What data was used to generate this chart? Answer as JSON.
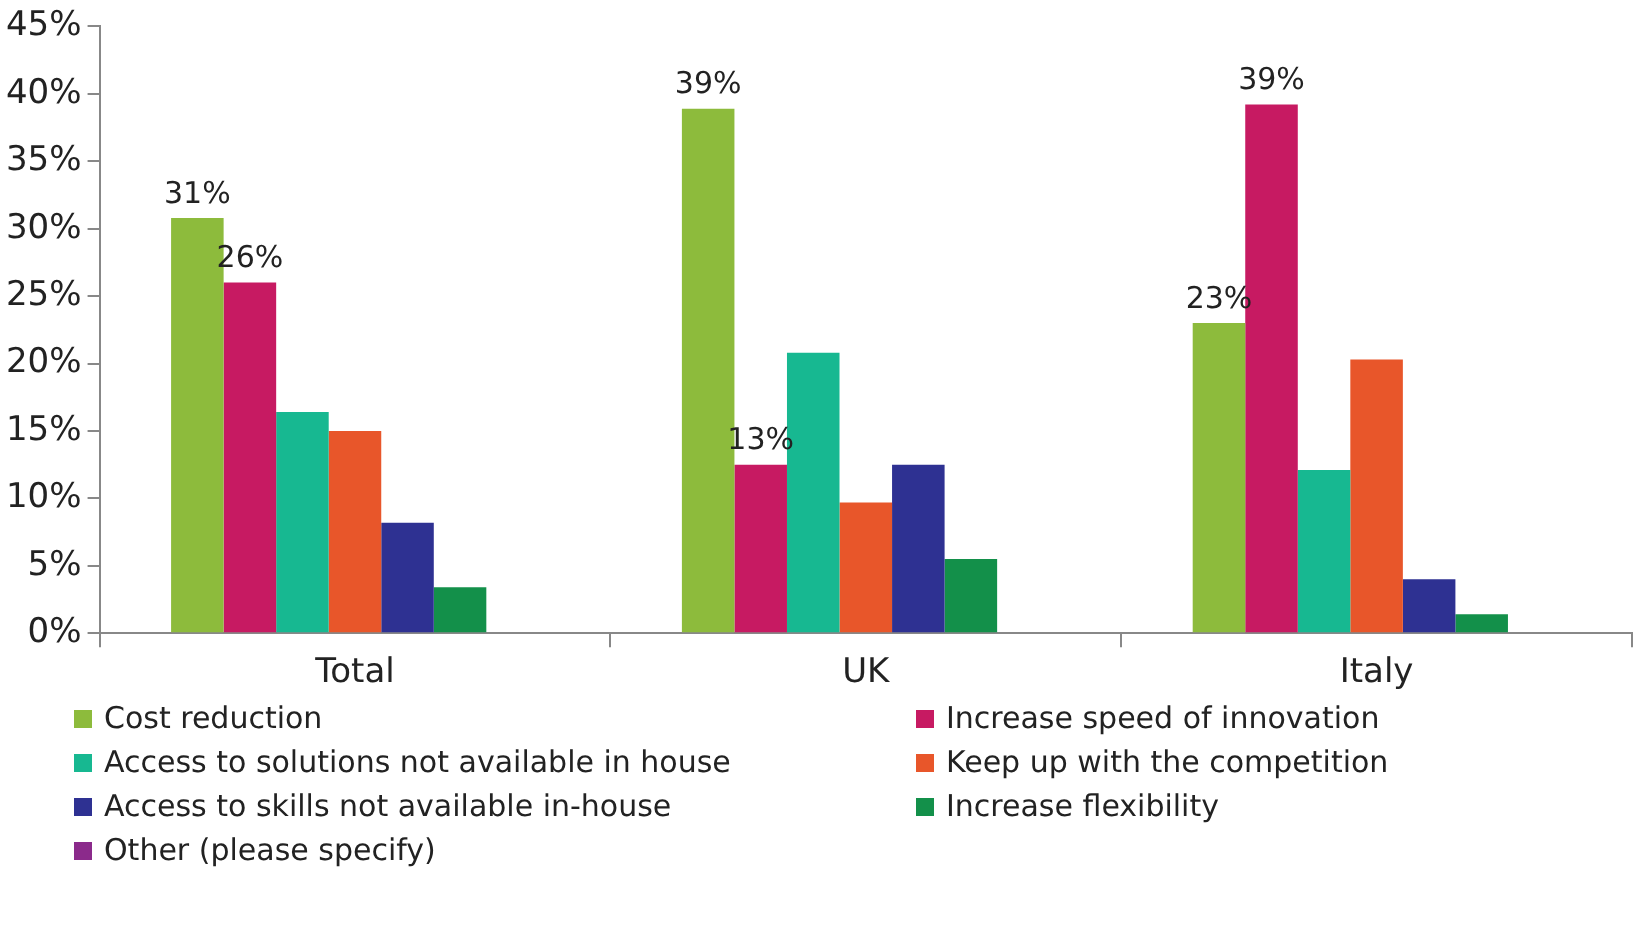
{
  "chart_data": {
    "type": "bar",
    "categories": [
      "Total",
      "UK",
      "Italy"
    ],
    "series": [
      {
        "name": "Cost reduction",
        "color": "#8dbb3c",
        "values": [
          30.8,
          38.9,
          23
        ],
        "value_labels": [
          "31%",
          "39%",
          "23%"
        ]
      },
      {
        "name": "Increase speed of innovation",
        "color": "#c71a62",
        "values": [
          26,
          12.5,
          39.2
        ],
        "value_labels": [
          "26%",
          "13%",
          "39%"
        ]
      },
      {
        "name": "Access to solutions not available in house",
        "color": "#17b891",
        "values": [
          16.4,
          20.8,
          12.1
        ]
      },
      {
        "name": "Keep up with the competition",
        "color": "#e8562a",
        "values": [
          15,
          9.7,
          20.3
        ]
      },
      {
        "name": "Access to skills not available in-house",
        "color": "#2e3192",
        "values": [
          8.2,
          12.5,
          4
        ]
      },
      {
        "name": "Increase flexibility",
        "color": "#13904a",
        "values": [
          3.4,
          5.5,
          1.4
        ]
      },
      {
        "name": "Other (please specify)",
        "color": "#8b2a8b",
        "values": [
          null,
          null,
          null
        ]
      }
    ],
    "ylim": [
      0,
      45
    ],
    "yticks": [
      {
        "value": 0,
        "label": "0%"
      },
      {
        "value": 5,
        "label": "5%"
      },
      {
        "value": 10,
        "label": "10%"
      },
      {
        "value": 15,
        "label": "15%"
      },
      {
        "value": 20,
        "label": "20%"
      },
      {
        "value": 25,
        "label": "25%"
      },
      {
        "value": 30,
        "label": "30%"
      },
      {
        "value": 35,
        "label": "35%"
      },
      {
        "value": 40,
        "label": "40%"
      },
      {
        "value": 45,
        "label": "45%"
      }
    ],
    "grid": false,
    "legend": "bottom"
  }
}
